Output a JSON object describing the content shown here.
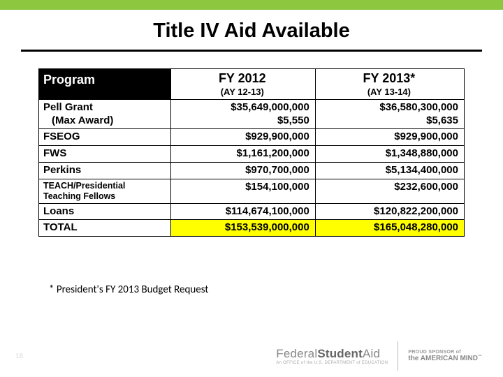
{
  "theme": {
    "accent": "#8dc63f",
    "highlight": "#ffff00"
  },
  "title": "Title IV Aid Available",
  "table": {
    "header": {
      "program": "Program",
      "col1_main": "FY 2012",
      "col1_sub": "(AY 12-13)",
      "col2_main": "FY 2013*",
      "col2_sub": "(AY 13-14)"
    },
    "rows": {
      "pell": {
        "label_l1": "Pell Grant",
        "label_l2": "(Max Award)",
        "fy12_l1": "$35,649,000,000",
        "fy12_l2": "$5,550",
        "fy13_l1": "$36,580,300,000",
        "fy13_l2": "$5,635"
      },
      "fseog": {
        "label": "FSEOG",
        "fy12": "$929,900,000",
        "fy13": "$929,900,000"
      },
      "fws": {
        "label": "FWS",
        "fy12": "$1,161,200,000",
        "fy13": "$1,348,880,000"
      },
      "perkins": {
        "label": "Perkins",
        "fy12": "$970,700,000",
        "fy13": "$5,134,400,000"
      },
      "teach": {
        "label_l1": "TEACH/Presidential",
        "label_l2": "Teaching Fellows",
        "fy12": "$154,100,000",
        "fy13": "$232,600,000"
      },
      "loans": {
        "label": "Loans",
        "fy12": "$114,674,100,000",
        "fy13": "$120,822,200,000"
      },
      "total": {
        "label": "TOTAL",
        "fy12": "$153,539,000,000",
        "fy13": "$165,048,280,000"
      }
    }
  },
  "footnote": "* President's FY 2013 Budget Request",
  "footer": {
    "page": "16",
    "brand_pre": "Federal",
    "brand_mid": "Student",
    "brand_post": "Aid",
    "brand_sub": "An OFFICE of the U.S. DEPARTMENT of EDUCATION",
    "sponsor_l1": "PROUD SPONSOR of",
    "sponsor_l2_pre": "the ",
    "sponsor_l2_main": "AMERICAN MIND",
    "tm": "™"
  }
}
